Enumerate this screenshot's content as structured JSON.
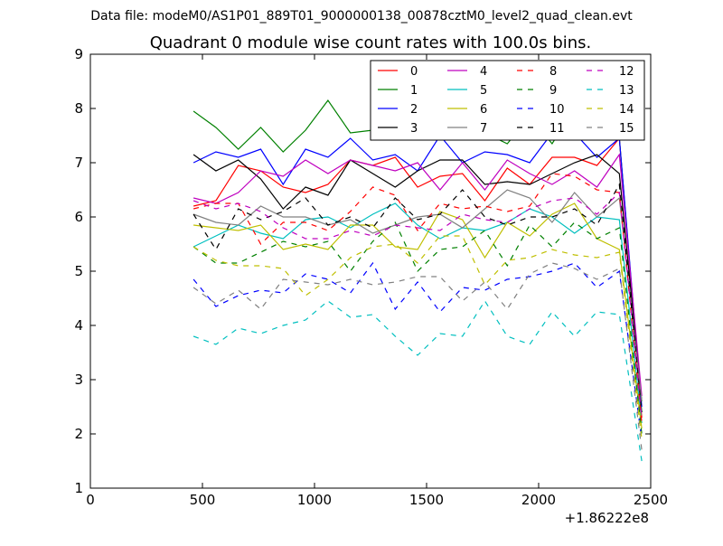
{
  "header": {
    "filename": "Data file: modeM0/AS1P01_889T01_9000000138_00878cztM0_level2_quad_clean.evt"
  },
  "chart_data": {
    "type": "line",
    "title": "Quadrant 0 module wise count rates with 100.0s bins.",
    "xlabel": "",
    "ylabel": "",
    "x_offset_label": "+1.86222e8",
    "xlim": [
      0,
      2500
    ],
    "ylim": [
      1,
      9
    ],
    "x_ticks": [
      0,
      500,
      1000,
      1500,
      2000,
      2500
    ],
    "x_tick_labels": [
      "0",
      "500",
      "1000",
      "1500",
      "2000",
      "2500"
    ],
    "y_ticks": [
      1,
      2,
      3,
      4,
      5,
      6,
      7,
      8,
      9
    ],
    "y_tick_labels": [
      "1",
      "2",
      "3",
      "4",
      "5",
      "6",
      "7",
      "8",
      "9"
    ],
    "grid": false,
    "legend_placement": "top-right",
    "x": [
      460,
      560,
      660,
      760,
      860,
      960,
      1060,
      1160,
      1260,
      1360,
      1460,
      1560,
      1660,
      1760,
      1860,
      1960,
      2060,
      2160,
      2260,
      2360,
      2460
    ],
    "series": [
      {
        "name": "0",
        "color": "#ff0000",
        "dash": "solid",
        "values": [
          6.2,
          6.3,
          6.95,
          6.85,
          6.55,
          6.45,
          6.6,
          7.05,
          6.95,
          7.1,
          6.55,
          6.75,
          6.8,
          6.3,
          6.9,
          6.6,
          7.1,
          7.1,
          6.95,
          7.45,
          2.3
        ]
      },
      {
        "name": "1",
        "color": "#008000",
        "dash": "solid",
        "values": [
          7.95,
          7.65,
          7.25,
          7.65,
          7.2,
          7.6,
          8.15,
          7.55,
          7.6,
          7.75,
          7.65,
          7.8,
          7.8,
          7.55,
          7.35,
          7.85,
          7.35,
          8.0,
          7.6,
          7.45,
          2.4
        ]
      },
      {
        "name": "2",
        "color": "#0000ff",
        "dash": "solid",
        "values": [
          7.0,
          7.2,
          7.1,
          7.25,
          6.6,
          7.25,
          7.1,
          7.45,
          7.05,
          7.15,
          6.85,
          7.5,
          7.0,
          7.2,
          7.15,
          7.0,
          7.55,
          7.55,
          7.1,
          7.45,
          2.5
        ]
      },
      {
        "name": "3",
        "color": "#000000",
        "dash": "solid",
        "values": [
          7.15,
          6.85,
          7.05,
          6.7,
          6.15,
          6.55,
          6.4,
          7.05,
          6.8,
          6.55,
          6.85,
          7.05,
          7.05,
          6.6,
          6.65,
          6.6,
          6.8,
          7.0,
          7.15,
          6.8,
          2.6
        ]
      },
      {
        "name": "4",
        "color": "#bf00bf",
        "dash": "solid",
        "values": [
          6.35,
          6.25,
          6.45,
          6.85,
          6.75,
          7.05,
          6.8,
          7.05,
          6.95,
          6.85,
          7.0,
          6.5,
          7.0,
          6.5,
          7.05,
          6.8,
          6.6,
          6.85,
          6.55,
          7.15,
          2.7
        ]
      },
      {
        "name": "5",
        "color": "#00bfbf",
        "dash": "solid",
        "values": [
          5.45,
          5.65,
          5.85,
          5.7,
          5.6,
          5.95,
          6.0,
          5.8,
          6.05,
          6.25,
          5.85,
          5.6,
          5.8,
          5.75,
          5.9,
          6.15,
          6.0,
          5.7,
          6.0,
          5.95,
          2.2
        ]
      },
      {
        "name": "6",
        "color": "#bfbf00",
        "dash": "solid",
        "values": [
          5.85,
          5.8,
          5.75,
          5.85,
          5.4,
          5.5,
          5.4,
          5.85,
          5.85,
          5.45,
          5.4,
          6.1,
          5.95,
          5.25,
          5.9,
          5.65,
          6.05,
          6.25,
          5.6,
          5.4,
          2.1
        ]
      },
      {
        "name": "7",
        "color": "#808080",
        "dash": "solid",
        "values": [
          6.05,
          5.9,
          5.85,
          6.2,
          6.0,
          6.0,
          5.85,
          5.95,
          5.7,
          5.85,
          6.0,
          6.05,
          5.8,
          6.15,
          6.5,
          6.35,
          5.9,
          6.45,
          6.0,
          6.35,
          2.6
        ]
      },
      {
        "name": "8",
        "color": "#ff0000",
        "dash": "dashed",
        "values": [
          6.15,
          6.25,
          6.25,
          5.5,
          5.9,
          5.9,
          5.75,
          6.1,
          6.55,
          6.4,
          5.75,
          6.25,
          6.15,
          6.2,
          6.1,
          6.2,
          6.8,
          6.75,
          6.5,
          6.45,
          2.2
        ]
      },
      {
        "name": "9",
        "color": "#008000",
        "dash": "dashed",
        "values": [
          5.45,
          5.15,
          5.15,
          5.35,
          5.55,
          5.45,
          5.55,
          5.0,
          5.55,
          5.9,
          5.0,
          5.4,
          5.45,
          5.75,
          5.1,
          5.85,
          5.45,
          5.9,
          5.6,
          5.8,
          2.0
        ]
      },
      {
        "name": "10",
        "color": "#0000ff",
        "dash": "dashed",
        "values": [
          4.85,
          4.35,
          4.55,
          4.65,
          4.6,
          4.95,
          4.85,
          4.6,
          5.15,
          4.3,
          4.8,
          4.25,
          4.7,
          4.65,
          4.85,
          4.9,
          5.0,
          5.15,
          4.7,
          5.0,
          1.9
        ]
      },
      {
        "name": "11",
        "color": "#000000",
        "dash": "dashed",
        "values": [
          6.05,
          5.4,
          6.15,
          5.95,
          6.1,
          6.35,
          5.85,
          6.0,
          5.8,
          6.35,
          5.95,
          6.05,
          6.5,
          6.0,
          5.85,
          6.0,
          6.0,
          6.15,
          5.85,
          6.6,
          2.4
        ]
      },
      {
        "name": "12",
        "color": "#bf00bf",
        "dash": "dashed",
        "values": [
          6.3,
          6.15,
          6.25,
          6.1,
          5.8,
          5.6,
          5.6,
          5.75,
          5.65,
          5.85,
          5.8,
          5.75,
          6.05,
          5.95,
          5.9,
          6.15,
          6.3,
          6.35,
          6.05,
          6.45,
          2.3
        ]
      },
      {
        "name": "13",
        "color": "#00bfbf",
        "dash": "dashed",
        "values": [
          3.8,
          3.65,
          3.95,
          3.85,
          4.0,
          4.1,
          4.45,
          4.15,
          4.2,
          3.8,
          3.45,
          3.85,
          3.8,
          4.45,
          3.8,
          3.65,
          4.25,
          3.8,
          4.25,
          4.2,
          1.5
        ]
      },
      {
        "name": "14",
        "color": "#bfbf00",
        "dash": "dashed",
        "values": [
          5.45,
          5.2,
          5.1,
          5.1,
          5.05,
          4.55,
          4.85,
          5.25,
          5.45,
          5.5,
          5.15,
          5.65,
          5.65,
          4.75,
          5.2,
          5.25,
          5.4,
          5.3,
          5.25,
          5.35,
          1.9
        ]
      },
      {
        "name": "15",
        "color": "#808080",
        "dash": "dashed",
        "values": [
          4.7,
          4.4,
          4.65,
          4.3,
          4.85,
          4.8,
          4.75,
          4.85,
          4.75,
          4.8,
          4.9,
          4.9,
          4.45,
          4.8,
          4.3,
          4.95,
          5.15,
          5.05,
          4.85,
          5.05,
          1.7
        ]
      }
    ]
  }
}
